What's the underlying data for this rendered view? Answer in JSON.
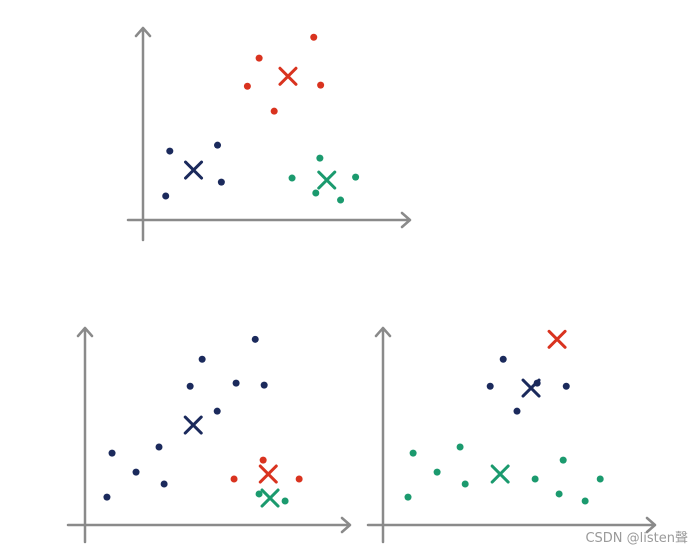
{
  "chart_data": [
    {
      "type": "scatter",
      "xlim": [
        0,
        10.5
      ],
      "ylim": [
        0,
        10.5
      ],
      "series": [
        {
          "color": "#1b2a5c",
          "x": [
            1.05,
            2.92,
            3.07,
            0.89
          ],
          "values": [
            3.73,
            4.05,
            2.05,
            1.3
          ],
          "centroid": [
            1.98,
            2.7
          ]
        },
        {
          "color": "#d9331f",
          "x": [
            4.55,
            6.69,
            4.09,
            5.14,
            6.96
          ],
          "values": [
            8.76,
            9.89,
            7.24,
            5.89,
            7.3
          ],
          "centroid": [
            5.68,
            7.78
          ]
        },
        {
          "color": "#1b9a6e",
          "x": [
            6.93,
            5.84,
            8.33,
            6.77,
            7.74
          ],
          "values": [
            3.35,
            2.27,
            2.32,
            1.46,
            1.08
          ],
          "centroid": [
            7.2,
            2.16
          ]
        }
      ]
    },
    {
      "type": "scatter",
      "xlim": [
        0,
        10.5
      ],
      "ylim": [
        0,
        10.5
      ],
      "series": [
        {
          "color": "#1b2a5c",
          "x": [
            0.86,
            1.06,
            2.0,
            2.9,
            3.1,
            4.12,
            4.59,
            5.18,
            5.92,
            6.67,
            7.02
          ],
          "values": [
            1.51,
            3.89,
            2.86,
            4.22,
            2.22,
            7.51,
            8.97,
            6.16,
            7.68,
            10.05,
            7.57
          ],
          "centroid": [
            4.24,
            5.41
          ]
        },
        {
          "color": "#d9331f",
          "x": [
            5.84,
            6.98,
            8.39
          ],
          "values": [
            2.49,
            3.51,
            2.49
          ],
          "centroid": [
            7.18,
            2.76
          ]
        },
        {
          "color": "#1b9a6e",
          "x": [
            6.82,
            7.84
          ],
          "values": [
            1.68,
            1.3
          ],
          "centroid": [
            7.25,
            1.46
          ]
        }
      ]
    },
    {
      "type": "scatter",
      "xlim": [
        0,
        10.5
      ],
      "ylim": [
        0,
        10.5
      ],
      "series": [
        {
          "color": "#1b2a5c",
          "x": [
            4.71,
            4.2,
            6.04,
            7.18,
            5.25
          ],
          "values": [
            8.97,
            7.51,
            7.68,
            7.51,
            6.16
          ],
          "centroid": [
            5.8,
            7.41
          ]
        },
        {
          "color": "#d9331f",
          "x": [],
          "values": [],
          "centroid": [
            6.82,
            10.05
          ]
        },
        {
          "color": "#1b9a6e",
          "x": [
            1.18,
            2.12,
            3.02,
            3.22,
            0.98,
            5.96,
            7.06,
            8.51,
            6.9,
            7.92
          ],
          "values": [
            3.89,
            2.86,
            4.22,
            2.22,
            1.51,
            2.49,
            3.51,
            2.49,
            1.68,
            1.3
          ],
          "centroid": [
            4.59,
            2.76
          ]
        }
      ]
    }
  ],
  "watermark": "CSDN @listen聲"
}
